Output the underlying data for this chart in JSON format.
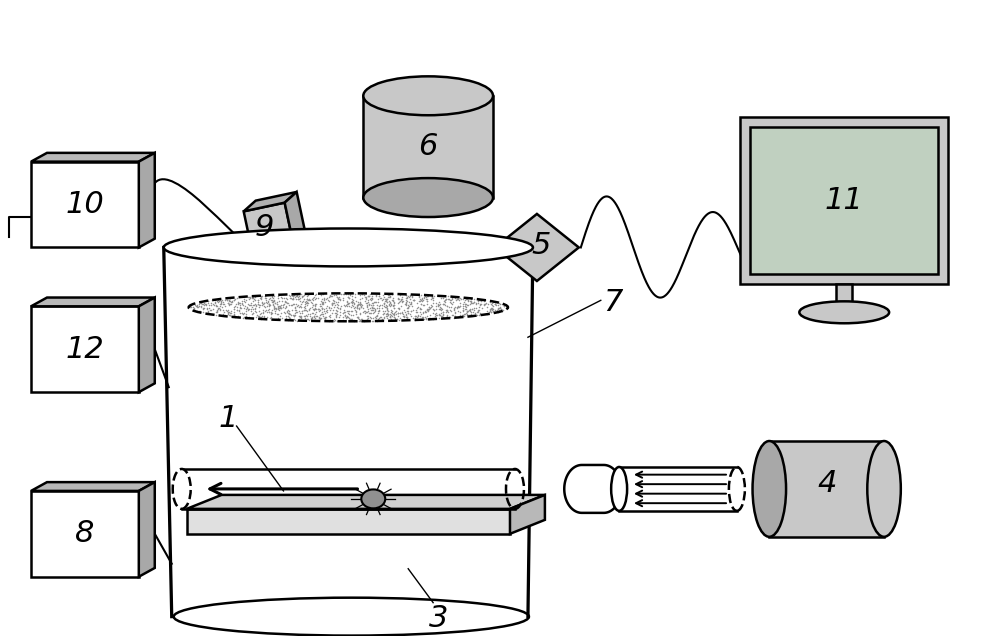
{
  "bg_color": "#ffffff",
  "fig_width": 10.0,
  "fig_height": 6.37,
  "dpi": 100,
  "lgray": "#c8c8c8",
  "mgray": "#a8a8a8",
  "dgray": "#888888",
  "screen_green": "#c0d0c0",
  "black": "#000000",
  "lw": 1.8,
  "fs": 22
}
